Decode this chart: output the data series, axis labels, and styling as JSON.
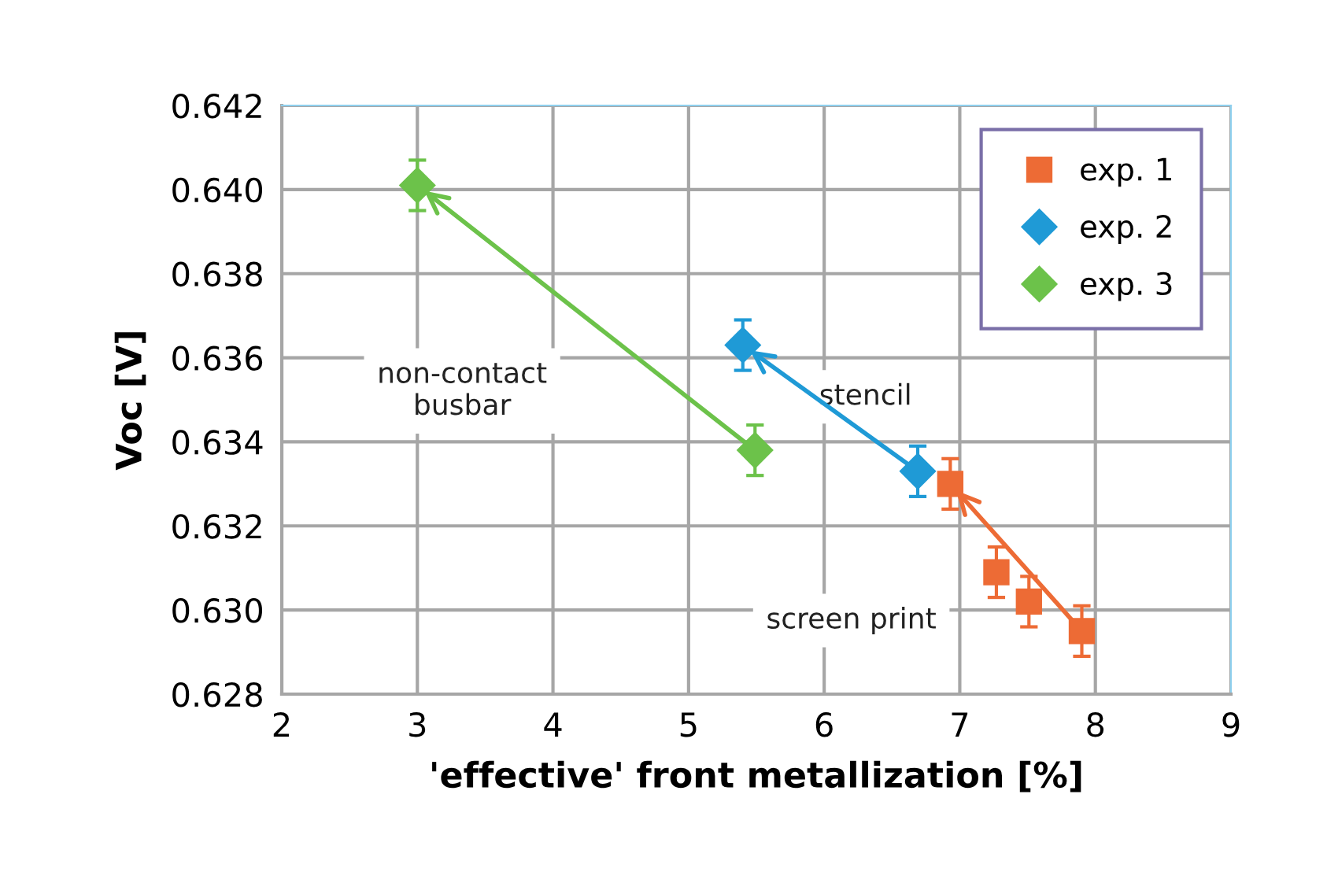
{
  "chart_data": {
    "type": "scatter",
    "xlabel": "'effective' front metallization [%]",
    "ylabel": "Voc [V]",
    "xlim": [
      2,
      9
    ],
    "xticks": [
      2,
      3,
      4,
      5,
      6,
      7,
      8,
      9
    ],
    "ylim": [
      0.628,
      0.642
    ],
    "yticks": [
      {
        "value": 0.628,
        "label": "0.628"
      },
      {
        "value": 0.63,
        "label": "0.630"
      },
      {
        "value": 0.632,
        "label": "0.632"
      },
      {
        "value": 0.634,
        "label": "0.634"
      },
      {
        "value": 0.636,
        "label": "0.636"
      },
      {
        "value": 0.638,
        "label": "0.638"
      },
      {
        "value": 0.64,
        "label": "0.640"
      },
      {
        "value": 0.642,
        "label": "0.642"
      }
    ],
    "grid": true,
    "legend": "top right",
    "series": [
      {
        "name": "exp. 1",
        "color": "#ed6b35",
        "marker": "square",
        "x": [
          6.93,
          7.27,
          7.51,
          7.9
        ],
        "values": [
          0.633,
          0.6309,
          0.6302,
          0.6295
        ],
        "errors": [
          0.0006,
          0.0006,
          0.0006,
          0.0006
        ]
      },
      {
        "name": "exp. 2",
        "color": "#1f9ad6",
        "marker": "diamond",
        "x": [
          5.4,
          6.69
        ],
        "values": [
          0.6363,
          0.6333
        ],
        "errors": [
          0.0006,
          0.0006
        ]
      },
      {
        "name": "exp. 3",
        "color": "#6cc24a",
        "marker": "diamond",
        "x": [
          3.0,
          5.49
        ],
        "values": [
          0.6401,
          0.6338
        ],
        "errors": [
          0.0006,
          0.0006
        ]
      }
    ],
    "annotations": [
      "non-contact\nbusbar",
      "stencil",
      "screen print"
    ]
  }
}
